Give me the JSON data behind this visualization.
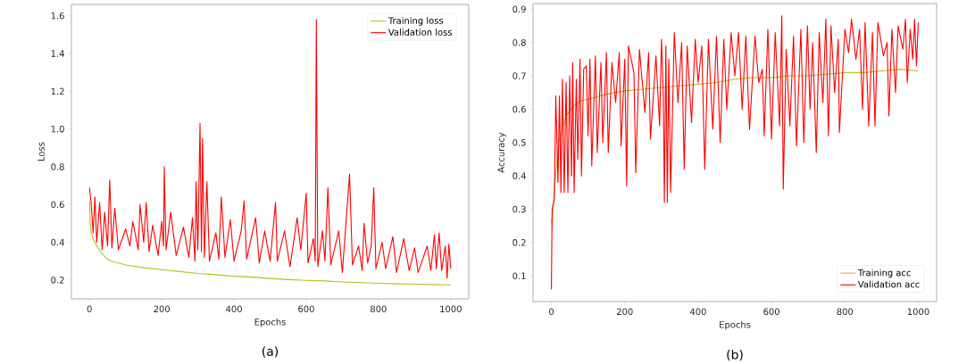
{
  "chart_data": [
    {
      "type": "line",
      "xlabel": "Epochs",
      "ylabel": "Loss",
      "annotations": [
        "(a)"
      ],
      "legend": "top right",
      "xlim": [
        -50,
        1050
      ],
      "ylim": [
        0.1,
        1.66
      ],
      "xticks": [
        0,
        200,
        400,
        600,
        800,
        1000
      ],
      "yticks": [
        0.2,
        0.4,
        0.6,
        0.8,
        {
          "value": 1,
          "label": "1.0"
        },
        1.2,
        1.4,
        1.6
      ],
      "series": [
        {
          "name": "Training loss",
          "color": "#bcbd22",
          "x": [
            0,
            2,
            5,
            10,
            20,
            30,
            40,
            50,
            60,
            80,
            100,
            150,
            200,
            250,
            300,
            350,
            400,
            450,
            500,
            550,
            600,
            650,
            700,
            750,
            800,
            850,
            900,
            950,
            1000
          ],
          "values": [
            0.62,
            0.5,
            0.45,
            0.42,
            0.38,
            0.35,
            0.33,
            0.31,
            0.3,
            0.29,
            0.28,
            0.265,
            0.255,
            0.245,
            0.235,
            0.228,
            0.22,
            0.215,
            0.208,
            0.202,
            0.198,
            0.195,
            0.19,
            0.186,
            0.183,
            0.18,
            0.178,
            0.176,
            0.173
          ]
        },
        {
          "name": "Validation loss",
          "color": "#ff0000",
          "x": [
            0,
            5,
            10,
            15,
            20,
            28,
            35,
            42,
            50,
            56,
            62,
            70,
            80,
            100,
            112,
            120,
            135,
            140,
            150,
            157,
            165,
            175,
            190,
            200,
            205,
            207,
            212,
            225,
            240,
            260,
            275,
            285,
            292,
            295,
            300,
            306,
            310,
            313,
            318,
            325,
            332,
            350,
            358,
            365,
            375,
            390,
            400,
            420,
            428,
            435,
            460,
            470,
            485,
            500,
            515,
            520,
            540,
            555,
            575,
            585,
            600,
            605,
            620,
            625,
            628,
            632,
            645,
            652,
            660,
            668,
            690,
            700,
            720,
            728,
            745,
            755,
            760,
            770,
            780,
            787,
            793,
            810,
            820,
            840,
            850,
            870,
            885,
            900,
            910,
            935,
            945,
            955,
            960,
            968,
            975,
            985,
            990,
            995,
            1000
          ],
          "values": [
            0.69,
            0.6,
            0.45,
            0.64,
            0.4,
            0.61,
            0.36,
            0.56,
            0.38,
            0.73,
            0.37,
            0.58,
            0.36,
            0.47,
            0.38,
            0.51,
            0.36,
            0.6,
            0.4,
            0.61,
            0.35,
            0.49,
            0.33,
            0.51,
            0.38,
            0.8,
            0.36,
            0.56,
            0.33,
            0.48,
            0.32,
            0.53,
            0.3,
            0.72,
            0.36,
            1.03,
            0.35,
            0.95,
            0.32,
            0.72,
            0.3,
            0.45,
            0.31,
            0.64,
            0.32,
            0.52,
            0.3,
            0.46,
            0.62,
            0.31,
            0.53,
            0.29,
            0.46,
            0.3,
            0.61,
            0.3,
            0.46,
            0.27,
            0.53,
            0.36,
            0.66,
            0.29,
            0.42,
            0.3,
            1.58,
            0.27,
            0.46,
            0.3,
            0.69,
            0.28,
            0.46,
            0.24,
            0.76,
            0.28,
            0.38,
            0.25,
            0.5,
            0.29,
            0.38,
            0.69,
            0.26,
            0.4,
            0.26,
            0.43,
            0.24,
            0.42,
            0.25,
            0.37,
            0.24,
            0.38,
            0.25,
            0.44,
            0.26,
            0.45,
            0.25,
            0.38,
            0.21,
            0.39,
            0.26
          ]
        }
      ]
    },
    {
      "type": "line",
      "xlabel": "Epochs",
      "ylabel": "Accuracy",
      "annotations": [
        "(b)"
      ],
      "legend": "bottom right",
      "xlim": [
        -50,
        1050
      ],
      "ylim": [
        0.023,
        0.917
      ],
      "xticks": [
        0,
        200,
        400,
        600,
        800,
        1000
      ],
      "yticks": [
        0.1,
        0.2,
        0.3,
        0.4,
        0.5,
        0.6,
        0.7,
        0.8,
        0.9
      ],
      "series": [
        {
          "name": "Training acc",
          "color": "#bcbd22",
          "x": [
            0,
            2,
            5,
            10,
            20,
            40,
            60,
            80,
            100,
            150,
            200,
            250,
            300,
            350,
            400,
            450,
            500,
            550,
            600,
            650,
            700,
            750,
            800,
            850,
            900,
            950,
            1000
          ],
          "values": [
            0.27,
            0.25,
            0.31,
            0.38,
            0.5,
            0.58,
            0.61,
            0.625,
            0.63,
            0.645,
            0.655,
            0.66,
            0.665,
            0.67,
            0.675,
            0.68,
            0.69,
            0.695,
            0.695,
            0.7,
            0.7,
            0.705,
            0.71,
            0.71,
            0.715,
            0.72,
            0.715
          ]
        },
        {
          "name": "Validation acc",
          "color": "#ff0000",
          "x": [
            0,
            2,
            8,
            12,
            18,
            22,
            26,
            30,
            35,
            40,
            45,
            50,
            55,
            58,
            62,
            68,
            72,
            78,
            82,
            88,
            95,
            100,
            105,
            110,
            120,
            125,
            135,
            140,
            150,
            155,
            165,
            175,
            185,
            190,
            200,
            205,
            210,
            225,
            230,
            240,
            255,
            265,
            270,
            285,
            295,
            300,
            305,
            308,
            312,
            316,
            320,
            325,
            335,
            345,
            355,
            362,
            370,
            382,
            392,
            400,
            410,
            418,
            428,
            440,
            450,
            460,
            470,
            478,
            490,
            500,
            510,
            520,
            530,
            540,
            555,
            565,
            575,
            580,
            590,
            600,
            610,
            622,
            628,
            632,
            640,
            650,
            660,
            668,
            680,
            688,
            698,
            705,
            712,
            722,
            730,
            740,
            748,
            755,
            762,
            772,
            782,
            785,
            800,
            810,
            818,
            830,
            840,
            848,
            855,
            865,
            875,
            882,
            890,
            905,
            915,
            920,
            928,
            938,
            945,
            958,
            965,
            970,
            978,
            985,
            990,
            995,
            1000
          ],
          "values": [
            0.06,
            0.3,
            0.33,
            0.64,
            0.38,
            0.64,
            0.35,
            0.69,
            0.35,
            0.68,
            0.35,
            0.7,
            0.4,
            0.74,
            0.35,
            0.69,
            0.45,
            0.75,
            0.4,
            0.72,
            0.73,
            0.52,
            0.75,
            0.43,
            0.76,
            0.47,
            0.74,
            0.5,
            0.77,
            0.47,
            0.74,
            0.62,
            0.77,
            0.49,
            0.75,
            0.37,
            0.79,
            0.71,
            0.41,
            0.78,
            0.59,
            0.77,
            0.51,
            0.76,
            0.55,
            0.81,
            0.65,
            0.32,
            0.79,
            0.32,
            0.75,
            0.35,
            0.83,
            0.62,
            0.8,
            0.42,
            0.79,
            0.56,
            0.81,
            0.68,
            0.79,
            0.42,
            0.81,
            0.54,
            0.82,
            0.5,
            0.81,
            0.6,
            0.83,
            0.7,
            0.83,
            0.6,
            0.82,
            0.54,
            0.82,
            0.68,
            0.72,
            0.52,
            0.84,
            0.51,
            0.83,
            0.55,
            0.88,
            0.36,
            0.78,
            0.55,
            0.82,
            0.49,
            0.84,
            0.5,
            0.85,
            0.6,
            0.8,
            0.47,
            0.83,
            0.62,
            0.87,
            0.52,
            0.85,
            0.65,
            0.81,
            0.53,
            0.84,
            0.77,
            0.87,
            0.75,
            0.84,
            0.6,
            0.86,
            0.55,
            0.83,
            0.55,
            0.86,
            0.76,
            0.8,
            0.58,
            0.84,
            0.65,
            0.85,
            0.78,
            0.87,
            0.68,
            0.84,
            0.75,
            0.87,
            0.73,
            0.86
          ]
        }
      ]
    }
  ]
}
